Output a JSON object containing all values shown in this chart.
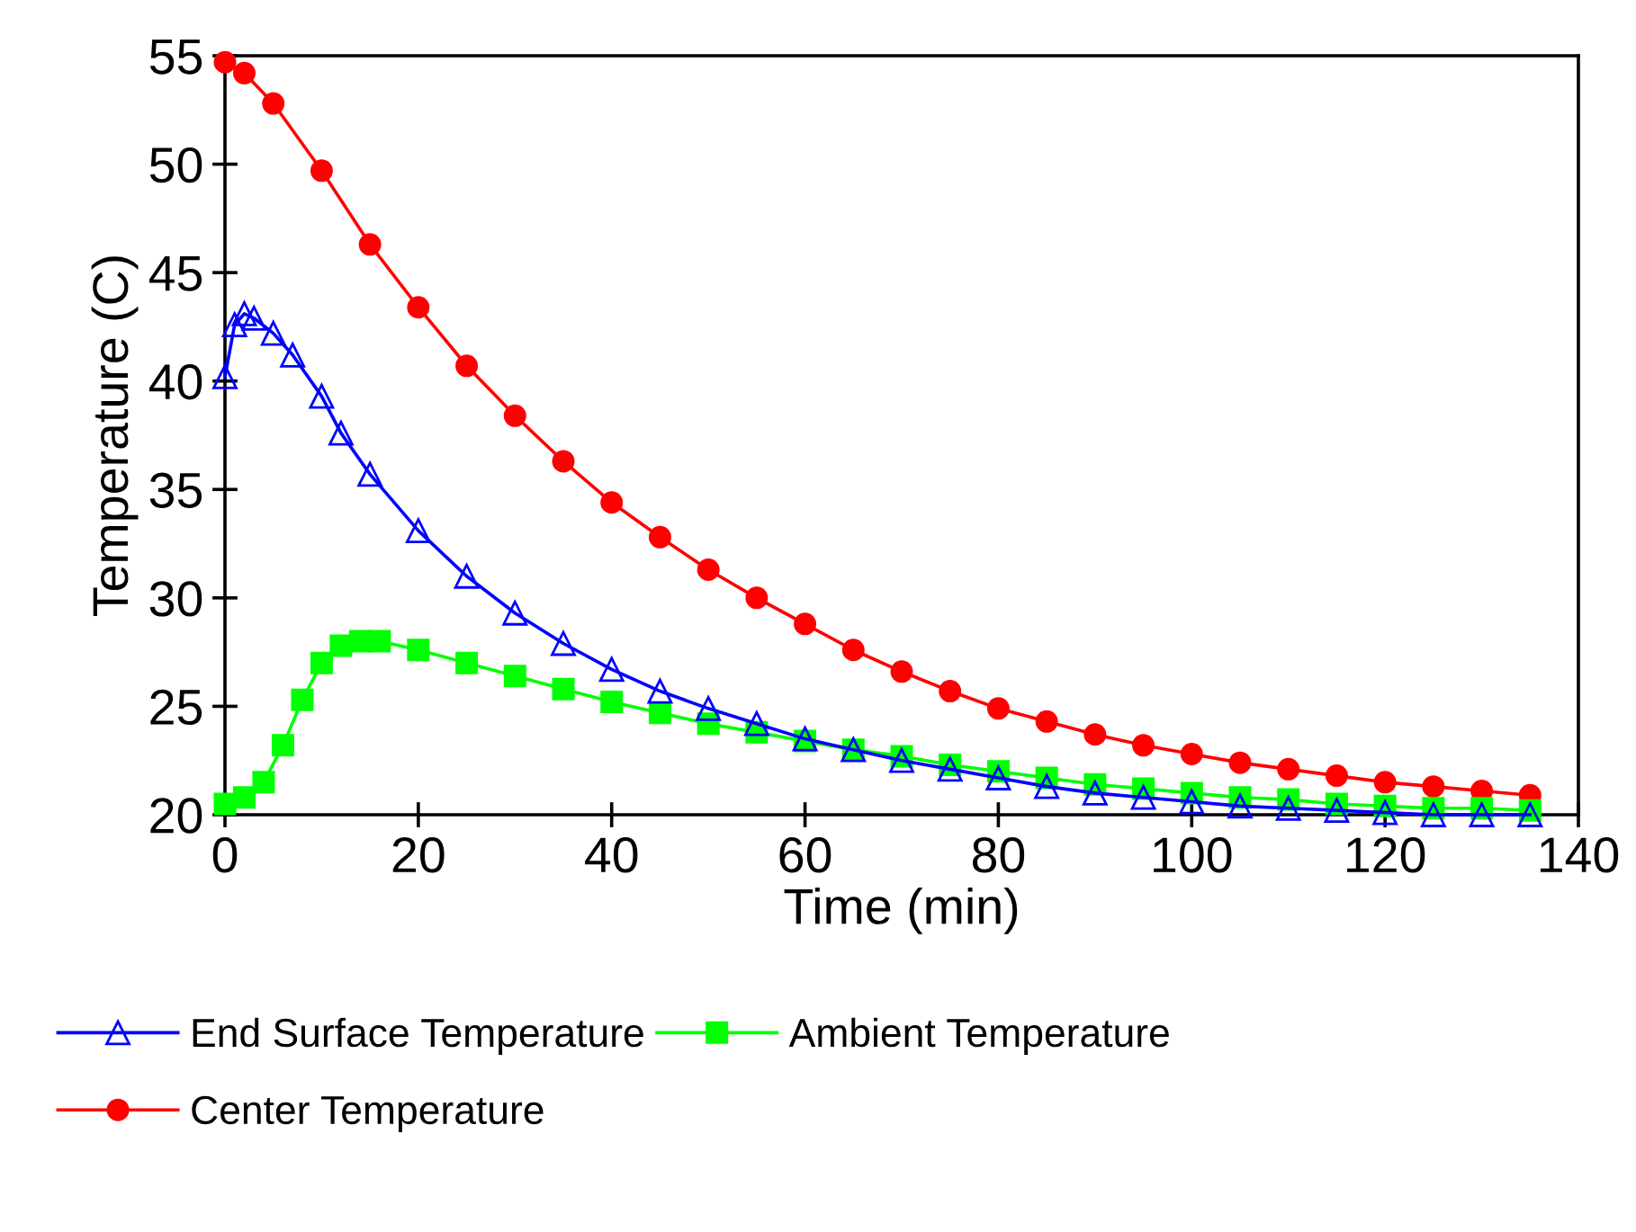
{
  "chart_data": {
    "type": "line",
    "xlabel": "Time (min)",
    "ylabel": "Temperature (C)",
    "xlim": [
      0,
      140
    ],
    "ylim": [
      20,
      55
    ],
    "xticks": [
      0,
      20,
      40,
      60,
      80,
      100,
      120,
      140
    ],
    "yticks": [
      20,
      25,
      30,
      35,
      40,
      45,
      50,
      55
    ],
    "grid": false,
    "legend": "bottom",
    "line_style": "solid",
    "series": [
      {
        "name": "End Surface Temperature",
        "color": "#0000ff",
        "marker": "triangle",
        "x": [
          0,
          1,
          2,
          3,
          5,
          7,
          10,
          12,
          15,
          20,
          25,
          30,
          35,
          40,
          45,
          50,
          55,
          60,
          65,
          70,
          75,
          80,
          85,
          90,
          95,
          100,
          105,
          110,
          115,
          120,
          125,
          130,
          135
        ],
        "values": [
          40.2,
          42.6,
          43.1,
          42.9,
          42.2,
          41.2,
          39.3,
          37.6,
          35.7,
          33.1,
          31.0,
          29.3,
          27.9,
          26.7,
          25.7,
          24.9,
          24.2,
          23.5,
          23.0,
          22.5,
          22.1,
          21.7,
          21.3,
          21.0,
          20.8,
          20.6,
          20.4,
          20.3,
          20.2,
          20.1,
          20.0,
          20.0,
          20.0
        ]
      },
      {
        "name": "Ambient Temperature",
        "color": "#00ff00",
        "marker": "square",
        "x": [
          0,
          2,
          4,
          6,
          8,
          10,
          12,
          14,
          16,
          20,
          25,
          30,
          35,
          40,
          45,
          50,
          55,
          60,
          65,
          70,
          75,
          80,
          85,
          90,
          95,
          100,
          105,
          110,
          115,
          120,
          125,
          130,
          135
        ],
        "values": [
          20.5,
          20.8,
          21.5,
          23.2,
          25.3,
          27.0,
          27.8,
          28.0,
          28.0,
          27.6,
          27.0,
          26.4,
          25.8,
          25.2,
          24.7,
          24.2,
          23.8,
          23.4,
          23.0,
          22.7,
          22.3,
          22.0,
          21.7,
          21.4,
          21.2,
          21.0,
          20.8,
          20.7,
          20.5,
          20.4,
          20.3,
          20.3,
          20.2
        ]
      },
      {
        "name": "Center Temperature",
        "color": "#ff0000",
        "marker": "circle",
        "x": [
          0,
          2,
          5,
          10,
          15,
          20,
          25,
          30,
          35,
          40,
          45,
          50,
          55,
          60,
          65,
          70,
          75,
          80,
          85,
          90,
          95,
          100,
          105,
          110,
          115,
          120,
          125,
          130,
          135
        ],
        "values": [
          54.7,
          54.2,
          52.8,
          49.7,
          46.3,
          43.4,
          40.7,
          38.4,
          36.3,
          34.4,
          32.8,
          31.3,
          30.0,
          28.8,
          27.6,
          26.6,
          25.7,
          24.9,
          24.3,
          23.7,
          23.2,
          22.8,
          22.4,
          22.1,
          21.8,
          21.5,
          21.3,
          21.1,
          20.9
        ]
      }
    ]
  }
}
